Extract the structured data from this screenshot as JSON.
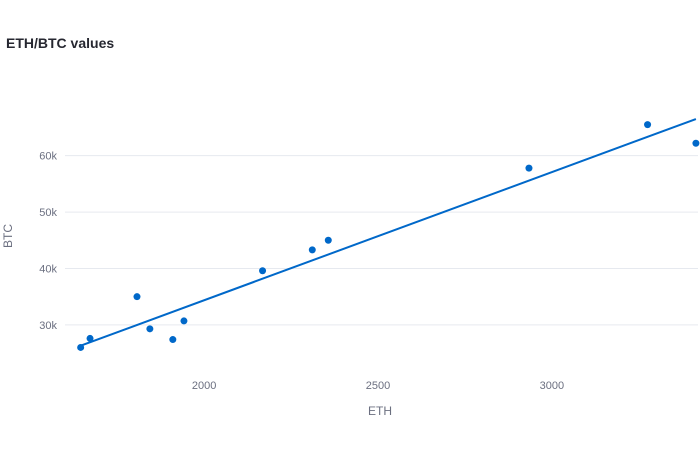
{
  "chart_data": {
    "type": "scatter",
    "title": "ETH/BTC values",
    "xlabel": "ETH",
    "ylabel": "BTC",
    "xlim": [
      1600,
      3420
    ],
    "ylim": [
      22000,
      72000
    ],
    "x_ticks": [
      2000,
      2500,
      3000
    ],
    "x_tick_labels": [
      "2000",
      "2500",
      "3000"
    ],
    "y_ticks": [
      30000,
      40000,
      50000,
      60000
    ],
    "y_tick_labels": [
      "30k",
      "40k",
      "50k",
      "60k"
    ],
    "grid": true,
    "points": [
      {
        "x": 1645,
        "y": 26000
      },
      {
        "x": 1672,
        "y": 27600
      },
      {
        "x": 1807,
        "y": 35000
      },
      {
        "x": 1844,
        "y": 29300
      },
      {
        "x": 1910,
        "y": 27400
      },
      {
        "x": 1942,
        "y": 30700
      },
      {
        "x": 2168,
        "y": 39600
      },
      {
        "x": 2311,
        "y": 43300
      },
      {
        "x": 2357,
        "y": 45000
      },
      {
        "x": 2934,
        "y": 57800
      },
      {
        "x": 3275,
        "y": 65500
      },
      {
        "x": 3414,
        "y": 62200
      }
    ],
    "trendline": {
      "x": [
        1645,
        3414
      ],
      "y": [
        26300,
        66500
      ]
    },
    "colors": {
      "points": "#0068c9",
      "line": "#0068c9",
      "grid": "#e6e9ef"
    }
  }
}
